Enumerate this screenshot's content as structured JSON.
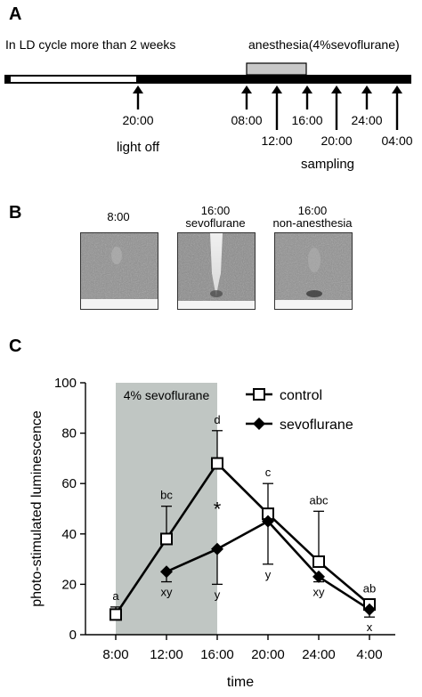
{
  "panelA": {
    "letter": "A",
    "ld_text": "In LD cycle more than 2 weeks",
    "anesthesia_text": "anesthesia(4%sevoflurane)",
    "light_off_time": "20:00",
    "light_off_label": "light off",
    "sampling_label": "sampling",
    "sampling_upper": [
      "08:00",
      "16:00",
      "24:00"
    ],
    "sampling_lower": [
      "12:00",
      "20:00",
      "04:00"
    ]
  },
  "panelB": {
    "letter": "B",
    "images": [
      {
        "line1": "8:00",
        "line2": ""
      },
      {
        "line1": "16:00",
        "line2": "sevoflurane"
      },
      {
        "line1": "16:00",
        "line2": "non-anesthesia"
      }
    ]
  },
  "panelC": {
    "letter": "C",
    "chart_data": {
      "type": "line",
      "categories": [
        "8:00",
        "12:00",
        "16:00",
        "20:00",
        "24:00",
        "4:00"
      ],
      "xlabel": "time",
      "ylabel": "photo-stimulated luminescence",
      "ylim": [
        0,
        100
      ],
      "yticks": [
        0,
        20,
        40,
        60,
        80,
        100
      ],
      "shaded_label": "4% sevoflurane",
      "shaded_range": [
        "8:00",
        "16:00"
      ],
      "legend_position": "top-right",
      "series": [
        {
          "name": "control",
          "marker": "square-open",
          "x": [
            "8:00",
            "12:00",
            "16:00",
            "20:00",
            "24:00",
            "4:00"
          ],
          "values": [
            8,
            38,
            68,
            48,
            29,
            12
          ],
          "error_upper": [
            3,
            13,
            13,
            12,
            20,
            2
          ],
          "letters": [
            "a",
            "bc",
            "d",
            "c",
            "abc",
            "ab"
          ]
        },
        {
          "name": "sevoflurane",
          "marker": "diamond-filled",
          "x": [
            "12:00",
            "16:00",
            "20:00",
            "24:00",
            "4:00"
          ],
          "values": [
            25,
            34,
            45,
            23,
            10
          ],
          "error_lower": [
            4,
            14,
            17,
            2,
            3
          ],
          "letters": [
            "xy",
            "y",
            "y",
            "xy",
            "x"
          ]
        }
      ],
      "annotations": [
        {
          "text": "*",
          "at": "16:00"
        }
      ]
    }
  }
}
